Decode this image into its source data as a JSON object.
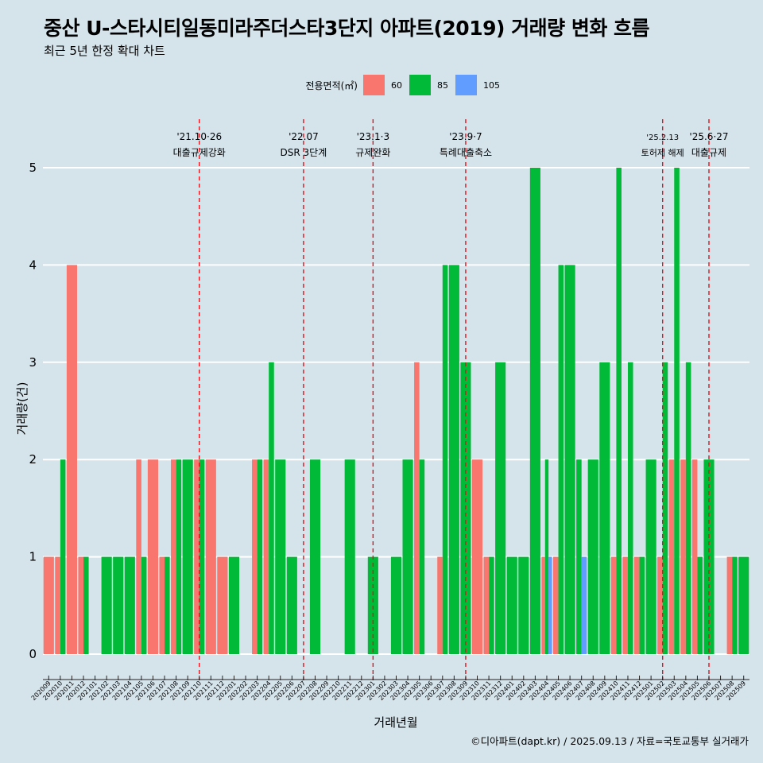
{
  "title": "중산 U-스타시티일동미라주더스타3단지 아파트(2019) 거래량 변화 흐름",
  "subtitle": "최근 5년 한정 확대 차트",
  "caption": "©디아파트(dapt.kr) / 2025.09.13 / 자료=국토교통부 실거래가",
  "chart_data": {
    "type": "bar",
    "stacked": false,
    "xlabel": "거래년월",
    "ylabel": "거래량(건)",
    "ylim": [
      0,
      5
    ],
    "yticks": [
      0,
      1,
      2,
      3,
      4,
      5
    ],
    "grid": "horizontal",
    "legend": {
      "title": "전용면적(㎡)",
      "position": "top",
      "items": [
        {
          "name": "60",
          "color": "#F8766D"
        },
        {
          "name": "85",
          "color": "#00BA38"
        },
        {
          "name": "105",
          "color": "#619CFF"
        }
      ]
    },
    "months": [
      "202009",
      "202010",
      "202011",
      "202012",
      "202101",
      "202102",
      "202103",
      "202104",
      "202105",
      "202106",
      "202107",
      "202108",
      "202109",
      "202110",
      "202111",
      "202112",
      "202201",
      "202202",
      "202203",
      "202204",
      "202205",
      "202206",
      "202207",
      "202208",
      "202209",
      "202210",
      "202211",
      "202212",
      "202301",
      "202302",
      "202303",
      "202304",
      "202305",
      "202306",
      "202307",
      "202308",
      "202309",
      "202310",
      "202311",
      "202312",
      "202401",
      "202402",
      "202403",
      "202404",
      "202405",
      "202406",
      "202407",
      "202408",
      "202409",
      "202410",
      "202411",
      "202412",
      "202501",
      "202502",
      "202503",
      "202504",
      "202505",
      "202506",
      "202507",
      "202508",
      "202509"
    ],
    "series": [
      {
        "name": "60",
        "color": "#F8766D",
        "values": [
          1,
          1,
          4,
          1,
          0,
          0,
          0,
          0,
          2,
          2,
          1,
          2,
          0,
          2,
          2,
          1,
          0,
          0,
          2,
          2,
          0,
          0,
          0,
          0,
          0,
          0,
          0,
          0,
          0,
          0,
          0,
          0,
          3,
          0,
          1,
          0,
          0,
          2,
          1,
          0,
          0,
          0,
          0,
          1,
          1,
          0,
          0,
          0,
          0,
          1,
          1,
          1,
          0,
          1,
          2,
          2,
          2,
          0,
          0,
          1,
          0
        ]
      },
      {
        "name": "85",
        "color": "#00BA38",
        "values": [
          0,
          2,
          0,
          1,
          0,
          1,
          1,
          1,
          1,
          0,
          1,
          2,
          2,
          2,
          0,
          0,
          1,
          0,
          2,
          3,
          2,
          1,
          0,
          2,
          0,
          0,
          2,
          0,
          1,
          0,
          1,
          2,
          2,
          0,
          4,
          4,
          3,
          0,
          1,
          3,
          1,
          1,
          5,
          2,
          4,
          4,
          2,
          2,
          3,
          5,
          3,
          1,
          2,
          3,
          5,
          3,
          1,
          2,
          0,
          1,
          1
        ]
      },
      {
        "name": "105",
        "color": "#619CFF",
        "values": [
          0,
          0,
          0,
          0,
          0,
          0,
          0,
          0,
          0,
          0,
          0,
          0,
          0,
          0,
          0,
          0,
          0,
          0,
          0,
          0,
          0,
          0,
          0,
          0,
          0,
          0,
          0,
          0,
          0,
          0,
          0,
          0,
          0,
          0,
          0,
          0,
          0,
          0,
          0,
          0,
          0,
          0,
          0,
          1,
          0,
          0,
          1,
          0,
          0,
          0,
          0,
          0,
          0,
          0,
          0,
          0,
          0,
          0,
          0,
          0,
          0
        ]
      }
    ],
    "events": [
      {
        "date": "202110",
        "label1": "'21.10·26",
        "label2": "대출규제강화"
      },
      {
        "date": "202207",
        "label1": "'22.07",
        "label2": "DSR 3단계"
      },
      {
        "date": "202301",
        "label1": "'23.1·3",
        "label2": "규제완화"
      },
      {
        "date": "202309",
        "label1": "'23.9·7",
        "label2": "특례대출축소"
      },
      {
        "date": "202502",
        "label1": "'25.2.13",
        "label2": "토허제 해제"
      },
      {
        "date": "202506",
        "label1": "'25.6·27",
        "label2": "대출규제"
      }
    ]
  }
}
